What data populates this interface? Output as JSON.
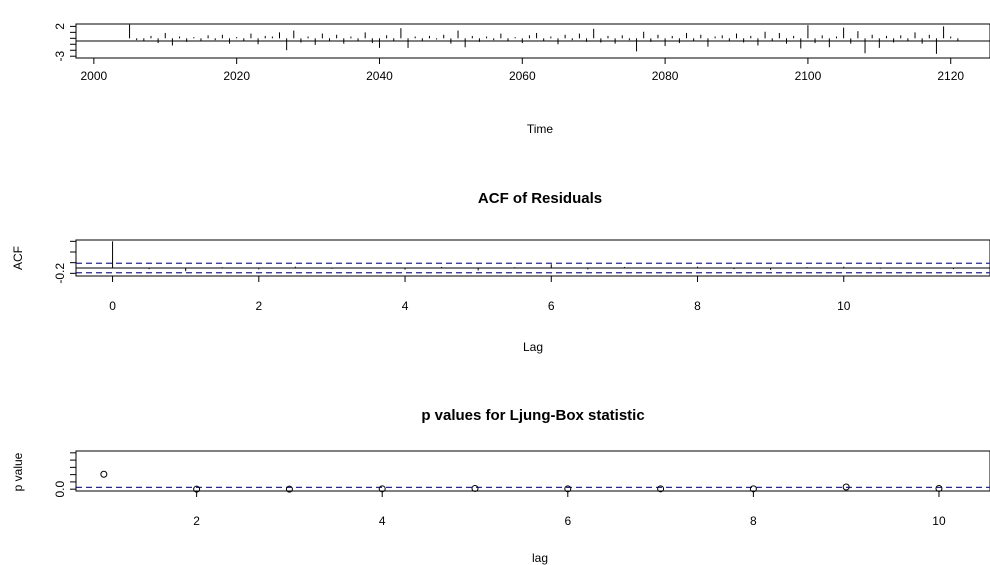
{
  "chart_data": [
    {
      "type": "line",
      "title": "",
      "xlabel": "Time",
      "ylabel": "",
      "xlim": [
        1997.5,
        2125.5
      ],
      "ylim": [
        -3.3,
        2.4
      ],
      "x_ticks": [
        2000,
        2020,
        2040,
        2060,
        2080,
        2100,
        2120
      ],
      "y_ticks": [
        2,
        -3
      ],
      "plot_style": "h",
      "series": [
        {
          "x": [
            2005,
            2006,
            2007,
            2008,
            2009,
            2010,
            2011,
            2012,
            2013,
            2014,
            2015,
            2016,
            2017,
            2018,
            2019,
            2020,
            2021,
            2022,
            2023,
            2024,
            2025,
            2026,
            2027,
            2028,
            2029,
            2030,
            2031,
            2032,
            2033,
            2034,
            2035,
            2036,
            2037,
            2038,
            2039,
            2040,
            2041,
            2042,
            2043,
            2044,
            2045,
            2046,
            2047,
            2048,
            2049,
            2050,
            2051,
            2052,
            2053,
            2054,
            2055,
            2056,
            2057,
            2058,
            2059,
            2060,
            2061,
            2062,
            2063,
            2064,
            2065,
            2066,
            2067,
            2068,
            2069,
            2070,
            2071,
            2072,
            2073,
            2074,
            2075,
            2076,
            2077,
            2078,
            2079,
            2080,
            2081,
            2082,
            2083,
            2084,
            2085,
            2086,
            2087,
            2088,
            2089,
            2090,
            2091,
            2092,
            2093,
            2094,
            2095,
            2096,
            2097,
            2098,
            2099,
            2100,
            2101,
            2102,
            2103,
            2104,
            2105,
            2106,
            2107,
            2108,
            2109,
            2110,
            2111,
            2112,
            2113,
            2114,
            2115,
            2116,
            2117,
            2118,
            2119,
            2120,
            2121
          ],
          "y": [
            2.3,
            -0.3,
            -0.5,
            0.4,
            -0.8,
            0.9,
            -1.2,
            0.3,
            -0.6,
            0.2,
            -0.4,
            0.5,
            -0.3,
            0.6,
            -0.9,
            0.2,
            -0.5,
            0.8,
            -1.0,
            0.4,
            0.3,
            1.0,
            -2.0,
            1.3,
            -0.7,
            0.3,
            -1.1,
            0.8,
            -0.4,
            0.6,
            -0.9,
            0.3,
            -0.5,
            1.0,
            -0.8,
            -1.6,
            0.5,
            -0.4,
            1.7,
            -1.6,
            0.3,
            -0.5,
            0.4,
            -0.2,
            0.6,
            -0.9,
            1.3,
            -1.5,
            0.4,
            -0.6,
            0.3,
            -0.3,
            0.8,
            -0.5,
            0.2,
            -0.8,
            0.5,
            0.9,
            -0.4,
            0.3,
            -1.0,
            0.6,
            -0.3,
            0.8,
            -0.6,
            1.6,
            -0.7,
            0.4,
            -0.9,
            0.5,
            -0.3,
            -2.2,
            1.1,
            -0.6,
            0.6,
            -1.3,
            0.4,
            -0.8,
            0.9,
            -0.5,
            0.6,
            -1.4,
            0.3,
            0.5,
            -0.4,
            0.8,
            -0.7,
            0.4,
            -1.2,
            1.1,
            -0.5,
            0.9,
            -0.9,
            0.4,
            -1.7,
            2.2,
            -0.8,
            0.5,
            -1.5,
            0.3,
            1.8,
            -0.9,
            1.2,
            -2.5,
            0.6,
            -1.6,
            0.4,
            -0.7,
            0.5,
            -0.4,
            1.0,
            -0.9,
            0.6,
            -2.6,
            2.0,
            0.3,
            -0.4
          ]
        }
      ]
    },
    {
      "type": "bar",
      "title": "ACF of Residuals",
      "xlabel": "Lag",
      "ylabel": "ACF",
      "xlim": [
        -0.5,
        12.0
      ],
      "ylim": [
        -0.3,
        1.05
      ],
      "x_ticks": [
        0,
        2,
        4,
        6,
        8,
        10
      ],
      "y_ticks": [
        -0.2
      ],
      "confidence_band": [
        -0.178,
        0.178
      ],
      "band_color": "#2a2a8c",
      "lags": [
        0,
        0.5,
        1,
        1.5,
        2,
        2.5,
        3,
        3.5,
        4,
        4.5,
        5,
        5.5,
        6,
        6.5,
        7,
        7.5,
        8,
        8.5,
        9,
        9.5,
        10,
        10.5,
        11,
        11.5
      ],
      "values": [
        1.0,
        -0.04,
        -0.12,
        0.03,
        -0.05,
        0.05,
        -0.03,
        0.02,
        -0.06,
        0.04,
        -0.09,
        0.03,
        0.14,
        -0.05,
        0.04,
        -0.02,
        0.05,
        -0.04,
        -0.07,
        0.03,
        0.05,
        -0.03,
        0.02,
        -0.04
      ]
    },
    {
      "type": "scatter",
      "title": "p values for Ljung-Box statistic",
      "xlabel": "lag",
      "ylabel": "p value",
      "xlim": [
        0.7,
        10.55
      ],
      "ylim": [
        -0.05,
        1.05
      ],
      "x_ticks": [
        2,
        4,
        6,
        8,
        10
      ],
      "y_ticks": [
        0.0
      ],
      "reference_line": 0.05,
      "line_color": "#2a2a8c",
      "x": [
        1,
        2,
        3,
        4,
        5,
        6,
        7,
        8,
        9,
        10
      ],
      "y": [
        0.41,
        0.0,
        0.0,
        0.01,
        0.02,
        0.01,
        0.01,
        0.01,
        0.06,
        0.02
      ]
    }
  ]
}
